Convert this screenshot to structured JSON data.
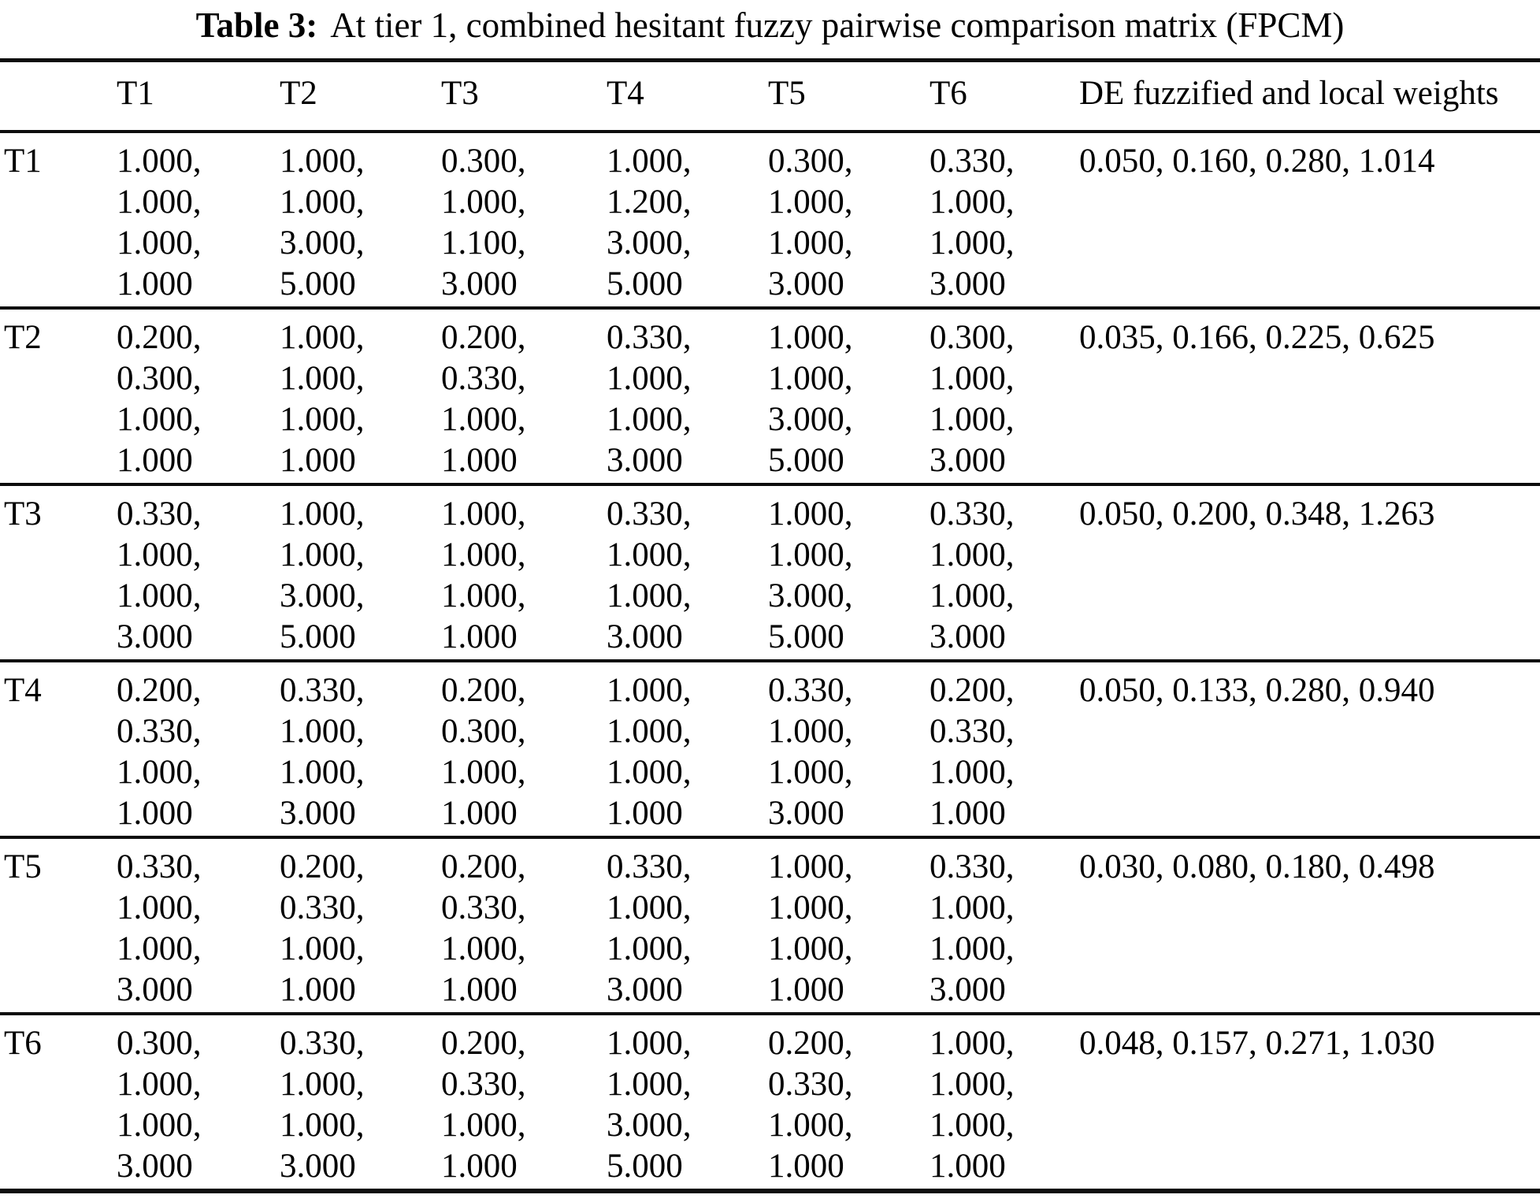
{
  "caption": {
    "label": "Table 3:",
    "text": "At tier 1, combined hesitant fuzzy pairwise comparison matrix (FPCM)"
  },
  "table": {
    "corner_header": "",
    "columns": [
      "T1",
      "T2",
      "T3",
      "T4",
      "T5",
      "T6"
    ],
    "weights_header": "DE fuzzified and local weights",
    "rows": [
      {
        "label": "T1",
        "cells": [
          [
            "1.000,",
            "1.000,",
            "1.000,",
            "1.000"
          ],
          [
            "1.000,",
            "1.000,",
            "3.000,",
            "5.000"
          ],
          [
            "0.300,",
            "1.000,",
            "1.100,",
            "3.000"
          ],
          [
            "1.000,",
            "1.200,",
            "3.000,",
            "5.000"
          ],
          [
            "0.300,",
            "1.000,",
            "1.000,",
            "3.000"
          ],
          [
            "0.330,",
            "1.000,",
            "1.000,",
            "3.000"
          ]
        ],
        "weights": "0.050, 0.160, 0.280, 1.014"
      },
      {
        "label": "T2",
        "cells": [
          [
            "0.200,",
            "0.300,",
            "1.000,",
            "1.000"
          ],
          [
            "1.000,",
            "1.000,",
            "1.000,",
            "1.000"
          ],
          [
            "0.200,",
            "0.330,",
            "1.000,",
            "1.000"
          ],
          [
            "0.330,",
            "1.000,",
            "1.000,",
            "3.000"
          ],
          [
            "1.000,",
            "1.000,",
            "3.000,",
            "5.000"
          ],
          [
            "0.300,",
            "1.000,",
            "1.000,",
            "3.000"
          ]
        ],
        "weights": "0.035, 0.166, 0.225, 0.625"
      },
      {
        "label": "T3",
        "cells": [
          [
            "0.330,",
            "1.000,",
            "1.000,",
            "3.000"
          ],
          [
            "1.000,",
            "1.000,",
            "3.000,",
            "5.000"
          ],
          [
            "1.000,",
            "1.000,",
            "1.000,",
            "1.000"
          ],
          [
            "0.330,",
            "1.000,",
            "1.000,",
            "3.000"
          ],
          [
            "1.000,",
            "1.000,",
            "3.000,",
            "5.000"
          ],
          [
            "0.330,",
            "1.000,",
            "1.000,",
            "3.000"
          ]
        ],
        "weights": "0.050, 0.200, 0.348, 1.263"
      },
      {
        "label": "T4",
        "cells": [
          [
            "0.200,",
            "0.330,",
            "1.000,",
            "1.000"
          ],
          [
            "0.330,",
            "1.000,",
            "1.000,",
            "3.000"
          ],
          [
            "0.200,",
            "0.300,",
            "1.000,",
            "1.000"
          ],
          [
            "1.000,",
            "1.000,",
            "1.000,",
            "1.000"
          ],
          [
            "0.330,",
            "1.000,",
            "1.000,",
            "3.000"
          ],
          [
            "0.200,",
            "0.330,",
            "1.000,",
            "1.000"
          ]
        ],
        "weights": "0.050, 0.133, 0.280, 0.940"
      },
      {
        "label": "T5",
        "cells": [
          [
            "0.330,",
            "1.000,",
            "1.000,",
            "3.000"
          ],
          [
            "0.200,",
            "0.330,",
            "1.000,",
            "1.000"
          ],
          [
            "0.200,",
            "0.330,",
            "1.000,",
            "1.000"
          ],
          [
            "0.330,",
            "1.000,",
            "1.000,",
            "3.000"
          ],
          [
            "1.000,",
            "1.000,",
            "1.000,",
            "1.000"
          ],
          [
            "0.330,",
            "1.000,",
            "1.000,",
            "3.000"
          ]
        ],
        "weights": "0.030, 0.080, 0.180, 0.498"
      },
      {
        "label": "T6",
        "cells": [
          [
            "0.300,",
            "1.000,",
            "1.000,",
            "3.000"
          ],
          [
            "0.330,",
            "1.000,",
            "1.000,",
            "3.000"
          ],
          [
            "0.200,",
            "0.330,",
            "1.000,",
            "1.000"
          ],
          [
            "1.000,",
            "1.000,",
            "3.000,",
            "5.000"
          ],
          [
            "0.200,",
            "0.330,",
            "1.000,",
            "1.000"
          ],
          [
            "1.000,",
            "1.000,",
            "1.000,",
            "1.000"
          ]
        ],
        "weights": "0.048, 0.157, 0.271, 1.030"
      }
    ]
  }
}
